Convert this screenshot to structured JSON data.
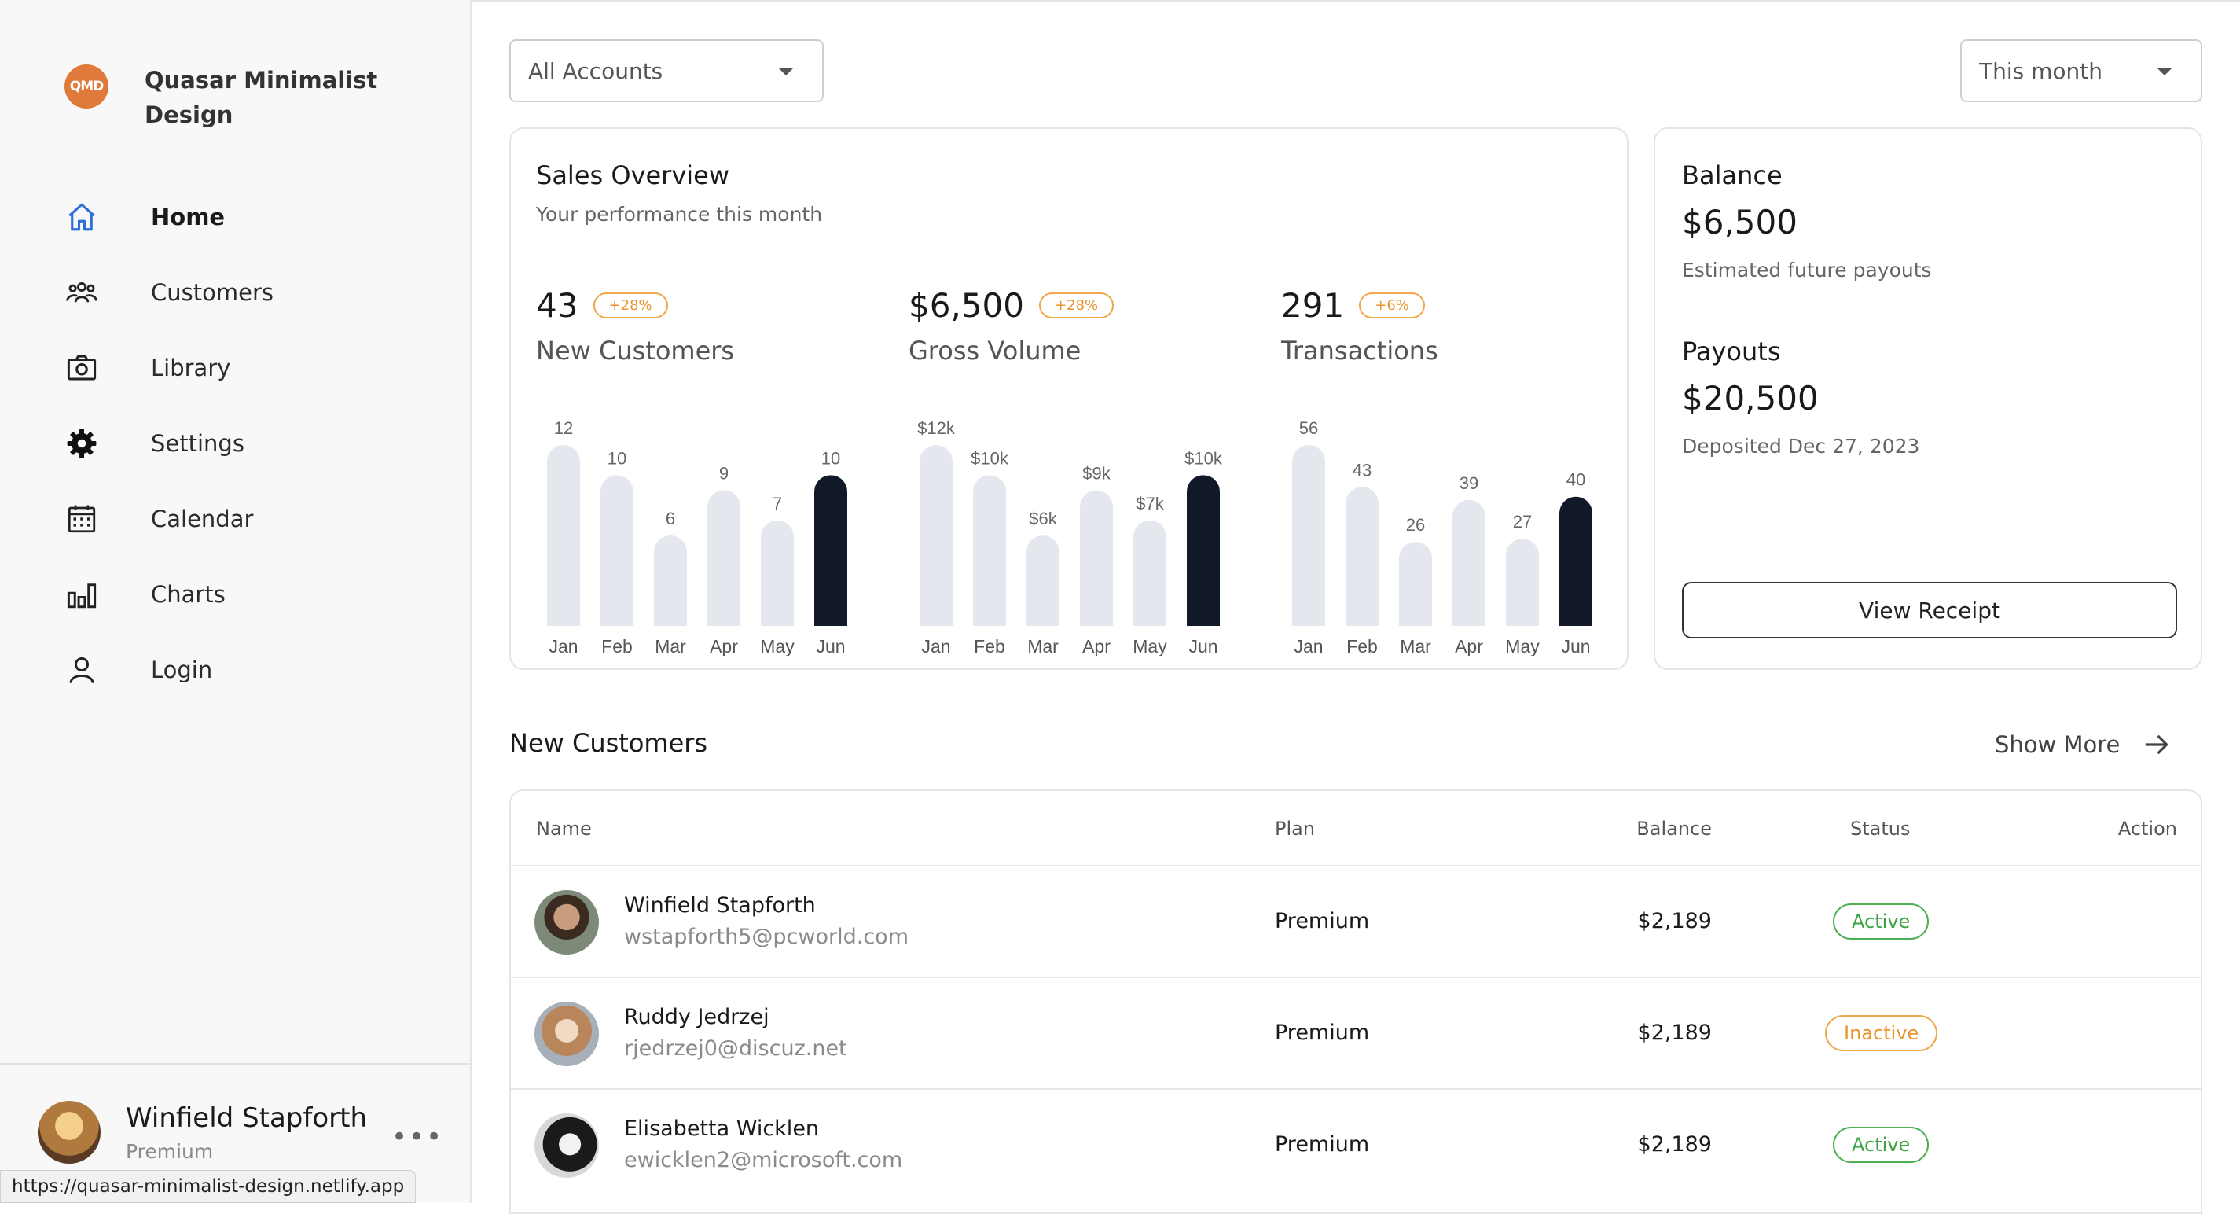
{
  "app": {
    "brand_logo": "QMD",
    "brand_name": "Quasar Minimalist Design"
  },
  "nav": {
    "items": [
      {
        "label": "Home",
        "icon": "home-icon",
        "active": true
      },
      {
        "label": "Customers",
        "icon": "customers-icon"
      },
      {
        "label": "Library",
        "icon": "camera-icon"
      },
      {
        "label": "Settings",
        "icon": "gear-icon"
      },
      {
        "label": "Calendar",
        "icon": "calendar-icon"
      },
      {
        "label": "Charts",
        "icon": "bar-chart-icon"
      },
      {
        "label": "Login",
        "icon": "person-icon"
      }
    ]
  },
  "user": {
    "name": "Winfield Stapforth",
    "plan": "Premium",
    "more": "•••"
  },
  "status_url": "https://quasar-minimalist-design.netlify.app",
  "filters": {
    "accounts": "All Accounts",
    "period": "This month"
  },
  "sales": {
    "title": "Sales Overview",
    "subtitle": "Your performance this month",
    "metrics": [
      {
        "value": "43",
        "badge": "+28%",
        "label": "New Customers"
      },
      {
        "value": "$6,500",
        "badge": "+28%",
        "label": "Gross Volume"
      },
      {
        "value": "291",
        "badge": "+6%",
        "label": "Transactions"
      }
    ]
  },
  "balance": {
    "balance_label": "Balance",
    "balance_value": "$6,500",
    "balance_note": "Estimated future payouts",
    "payouts_label": "Payouts",
    "payouts_value": "$20,500",
    "payouts_note": "Deposited Dec 27, 2023",
    "receipt_button": "View Receipt"
  },
  "chart_data": [
    {
      "type": "bar",
      "title": "New Customers",
      "categories": [
        "Jan",
        "Feb",
        "Mar",
        "Apr",
        "May",
        "Jun"
      ],
      "values": [
        12,
        10,
        6,
        9,
        7,
        10
      ],
      "data_labels": [
        "12",
        "10",
        "6",
        "9",
        "7",
        "10"
      ],
      "ylim": [
        0,
        12
      ],
      "highlight_index": 5
    },
    {
      "type": "bar",
      "title": "Gross Volume",
      "categories": [
        "Jan",
        "Feb",
        "Mar",
        "Apr",
        "May",
        "Jun"
      ],
      "values": [
        12000,
        10000,
        6000,
        9000,
        7000,
        10000
      ],
      "data_labels": [
        "$12k",
        "$10k",
        "$6k",
        "$9k",
        "$7k",
        "$10k"
      ],
      "ylim": [
        0,
        12000
      ],
      "highlight_index": 5
    },
    {
      "type": "bar",
      "title": "Transactions",
      "categories": [
        "Jan",
        "Feb",
        "Mar",
        "Apr",
        "May",
        "Jun"
      ],
      "values": [
        56,
        43,
        26,
        39,
        27,
        40
      ],
      "data_labels": [
        "56",
        "43",
        "26",
        "39",
        "27",
        "40"
      ],
      "ylim": [
        0,
        56
      ],
      "highlight_index": 5
    }
  ],
  "colors": {
    "bar": "#e4e7ee",
    "bar_highlight": "#111827",
    "accent": "#e07a3a",
    "active": "#4caf50",
    "inactive": "#f0a64a",
    "nav_active": "#2e6fd9"
  },
  "customers": {
    "title": "New Customers",
    "show_more": "Show More",
    "columns": [
      "Name",
      "Plan",
      "Balance",
      "Status",
      "Action"
    ],
    "rows": [
      {
        "name": "Winfield Stapforth",
        "email": "wstapforth5@pcworld.com",
        "plan": "Premium",
        "balance": "$2,189",
        "status": "Active"
      },
      {
        "name": "Ruddy Jedrzej",
        "email": "rjedrzej0@discuz.net",
        "plan": "Premium",
        "balance": "$2,189",
        "status": "Inactive"
      },
      {
        "name": "Elisabetta Wicklen",
        "email": "ewicklen2@microsoft.com",
        "plan": "Premium",
        "balance": "$2,189",
        "status": "Active"
      }
    ]
  }
}
